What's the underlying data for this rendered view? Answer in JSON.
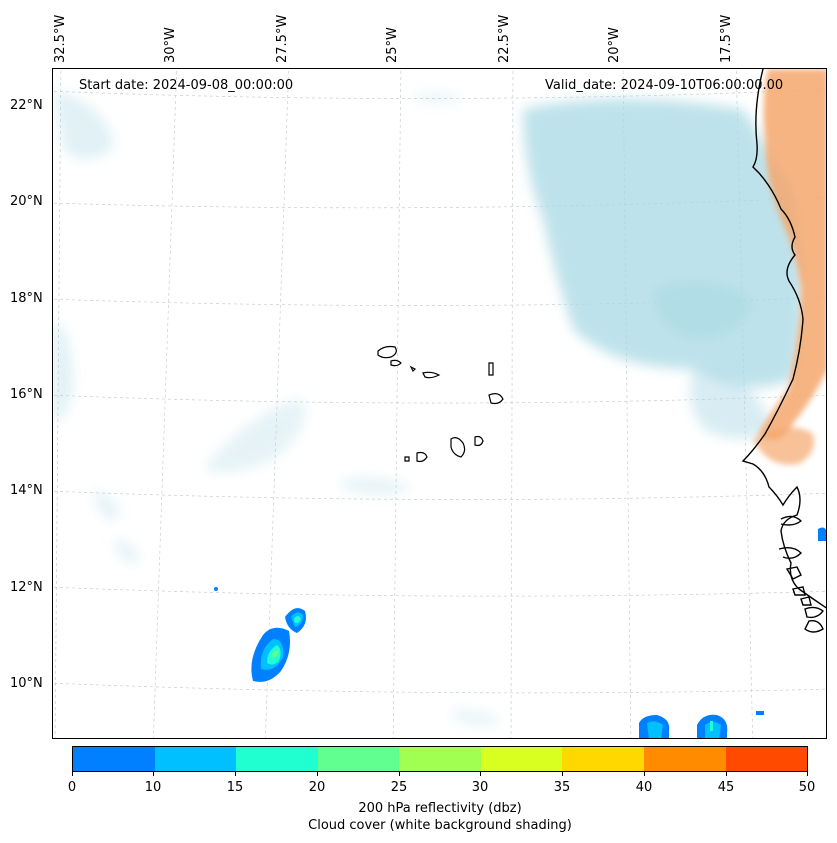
{
  "map": {
    "start_date": "Start date: 2024-09-08_00:00:00",
    "valid_date": "Valid_date: 2024-09-10T06:00:00.00",
    "lon_labels": [
      "32.5°W",
      "30°W",
      "27.5°W",
      "25°W",
      "22.5°W",
      "20°W",
      "17.5°W"
    ],
    "lat_labels": [
      "22°N",
      "20°N",
      "18°N",
      "16°N",
      "14°N",
      "12°N",
      "10°N"
    ]
  },
  "colorbar": {
    "ticks": [
      "0",
      "10",
      "15",
      "20",
      "25",
      "30",
      "35",
      "40",
      "45",
      "50"
    ],
    "colors": [
      "#0080ff",
      "#00c0ff",
      "#20ffd0",
      "#60ff90",
      "#a0ff50",
      "#d8ff20",
      "#ffd800",
      "#ff8c00",
      "#ff4a00"
    ],
    "label_line1": "200 hPa reflectivity (dbz)",
    "label_line2": "Cloud cover (white background shading)"
  },
  "colors": {
    "cloud": "#a8d8e4",
    "land_heat": "#f5a76c",
    "coastline": "#000000",
    "grid": "#cccccc"
  }
}
